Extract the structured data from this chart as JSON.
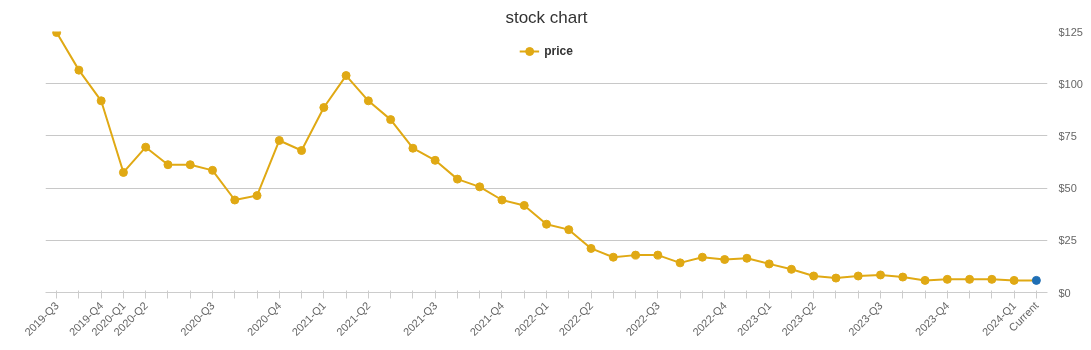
{
  "chart_data": {
    "type": "line",
    "title": "stock chart",
    "categories": [
      "2019-Q3",
      null,
      "2019-Q4",
      "2020-Q1",
      "2020-Q2",
      null,
      null,
      "2020-Q3",
      null,
      null,
      "2020-Q4",
      null,
      "2021-Q1",
      null,
      "2021-Q2",
      null,
      null,
      "2021-Q3",
      null,
      null,
      "2021-Q4",
      null,
      "2022-Q1",
      null,
      "2022-Q2",
      null,
      null,
      "2022-Q3",
      null,
      null,
      "2022-Q4",
      null,
      "2023-Q1",
      null,
      "2023-Q2",
      null,
      null,
      "2023-Q3",
      null,
      null,
      "2023-Q4",
      null,
      null,
      "2024-Q1",
      "Current"
    ],
    "series": [
      {
        "name": "price",
        "color": "#e0a914",
        "colors": [
          "#e0a914",
          "#e0a914",
          "#e0a914",
          "#e0a914",
          "#e0a914",
          "#e0a914",
          "#e0a914",
          "#e0a914",
          "#e0a914",
          "#e0a914",
          "#e0a914",
          "#e0a914",
          "#e0a914",
          "#e0a914",
          "#e0a914",
          "#e0a914",
          "#e0a914",
          "#e0a914",
          "#e0a914",
          "#e0a914",
          "#e0a914",
          "#e0a914",
          "#e0a914",
          "#e0a914",
          "#e0a914",
          "#e0a914",
          "#e0a914",
          "#e0a914",
          "#e0a914",
          "#e0a914",
          "#e0a914",
          "#e0a914",
          "#e0a914",
          "#e0a914",
          "#e0a914",
          "#e0a914",
          "#e0a914",
          "#e0a914",
          "#e0a914",
          "#e0a914",
          "#e0a914",
          "#e0a914",
          "#e0a914",
          "#e0a914",
          "#1f6fb5"
        ],
        "values": [
          124.5,
          106.5,
          91.8,
          57.5,
          69.6,
          61.2,
          61.2,
          58.5,
          44.3,
          46.4,
          72.8,
          68,
          88.6,
          103.9,
          91.8,
          82.8,
          69.1,
          63.3,
          54.3,
          50.6,
          44.3,
          41.7,
          32.7,
          30.1,
          21.1,
          16.9,
          17.9,
          17.9,
          14.2,
          16.9,
          15.8,
          16.4,
          13.7,
          11.1,
          7.9,
          6.9,
          7.9,
          8.4,
          7.4,
          5.8,
          6.3,
          6.3,
          6.3,
          5.8,
          5.8
        ]
      }
    ],
    "ylim": [
      0,
      125
    ],
    "yticks": [
      {
        "value": 0,
        "label": "$0"
      },
      {
        "value": 25,
        "label": "$25"
      },
      {
        "value": 50,
        "label": "$50"
      },
      {
        "value": 75,
        "label": "$75"
      },
      {
        "value": 100,
        "label": "$100"
      },
      {
        "value": 125,
        "label": "$125"
      }
    ],
    "grid": "y",
    "legend": "top",
    "marker": "circle",
    "line_style": "solid"
  }
}
